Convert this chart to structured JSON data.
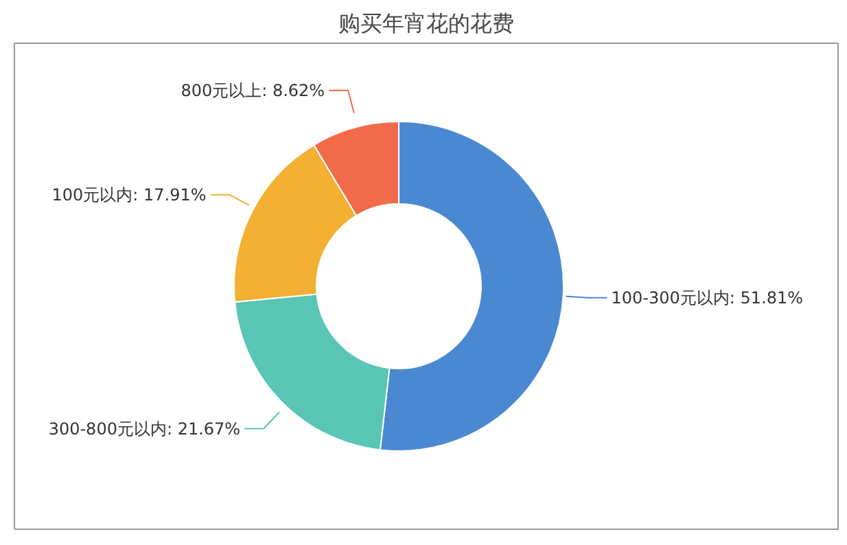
{
  "chart_data": {
    "type": "donut",
    "title": "购买年宵花的花费",
    "categories": [
      "100-300元以内",
      "300-800元以内",
      "100元以内",
      "800元以上"
    ],
    "values": [
      51.81,
      21.67,
      17.91,
      8.62
    ],
    "colors": [
      "#4a89d2",
      "#58c5b5",
      "#f3b033",
      "#f16a4a"
    ],
    "value_labels": [
      "51.81%",
      "21.67%",
      "17.91%",
      "8.62%"
    ]
  }
}
